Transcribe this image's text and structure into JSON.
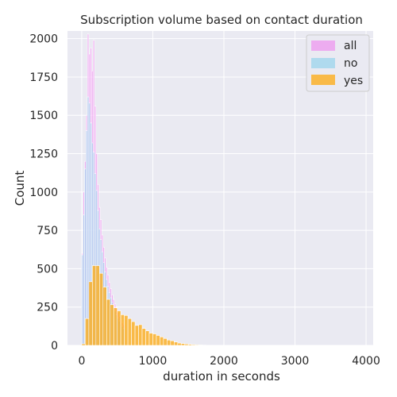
{
  "chart_data": {
    "type": "histogram",
    "title": "Subscription volume based on contact duration",
    "xlabel": "duration in seconds",
    "ylabel": "Count",
    "xlim": [
      -200,
      4100
    ],
    "ylim": [
      0,
      2050
    ],
    "xticks": [
      0,
      1000,
      2000,
      3000,
      4000
    ],
    "yticks": [
      0,
      250,
      500,
      750,
      1000,
      1250,
      1500,
      1750,
      2000
    ],
    "grid": true,
    "legend_position": "top-right",
    "background": "#EAEAF2",
    "series": [
      {
        "name": "all",
        "color": "#EE82EE",
        "bin_width": 20,
        "bins": [
          {
            "x": 0,
            "count": 600
          },
          {
            "x": 20,
            "count": 1000
          },
          {
            "x": 40,
            "count": 1200
          },
          {
            "x": 60,
            "count": 1500
          },
          {
            "x": 80,
            "count": 2030
          },
          {
            "x": 100,
            "count": 1900
          },
          {
            "x": 120,
            "count": 1940
          },
          {
            "x": 140,
            "count": 1790
          },
          {
            "x": 160,
            "count": 1990
          },
          {
            "x": 180,
            "count": 1560
          },
          {
            "x": 200,
            "count": 1250
          },
          {
            "x": 220,
            "count": 1050
          },
          {
            "x": 240,
            "count": 900
          },
          {
            "x": 260,
            "count": 820
          },
          {
            "x": 280,
            "count": 720
          },
          {
            "x": 300,
            "count": 640
          },
          {
            "x": 320,
            "count": 570
          },
          {
            "x": 340,
            "count": 510
          },
          {
            "x": 360,
            "count": 460
          },
          {
            "x": 380,
            "count": 410
          },
          {
            "x": 400,
            "count": 370
          },
          {
            "x": 420,
            "count": 330
          },
          {
            "x": 440,
            "count": 300
          },
          {
            "x": 460,
            "count": 270
          },
          {
            "x": 480,
            "count": 240
          },
          {
            "x": 500,
            "count": 215
          },
          {
            "x": 520,
            "count": 190
          },
          {
            "x": 540,
            "count": 170
          },
          {
            "x": 560,
            "count": 150
          },
          {
            "x": 580,
            "count": 135
          }
        ]
      },
      {
        "name": "no",
        "color": "#87CEEB",
        "bin_width": 20,
        "bins": [
          {
            "x": 0,
            "count": 590
          },
          {
            "x": 20,
            "count": 850
          },
          {
            "x": 40,
            "count": 1150
          },
          {
            "x": 60,
            "count": 1400
          },
          {
            "x": 80,
            "count": 1620
          },
          {
            "x": 100,
            "count": 1580
          },
          {
            "x": 120,
            "count": 1450
          },
          {
            "x": 140,
            "count": 1320
          },
          {
            "x": 160,
            "count": 1260
          },
          {
            "x": 180,
            "count": 1120
          },
          {
            "x": 200,
            "count": 1010
          },
          {
            "x": 220,
            "count": 880
          },
          {
            "x": 240,
            "count": 760
          },
          {
            "x": 260,
            "count": 690
          },
          {
            "x": 280,
            "count": 610
          },
          {
            "x": 300,
            "count": 540
          },
          {
            "x": 320,
            "count": 480
          },
          {
            "x": 340,
            "count": 430
          },
          {
            "x": 360,
            "count": 385
          },
          {
            "x": 380,
            "count": 345
          },
          {
            "x": 400,
            "count": 310
          },
          {
            "x": 420,
            "count": 280
          },
          {
            "x": 440,
            "count": 250
          },
          {
            "x": 460,
            "count": 225
          },
          {
            "x": 480,
            "count": 200
          },
          {
            "x": 500,
            "count": 180
          },
          {
            "x": 520,
            "count": 160
          },
          {
            "x": 540,
            "count": 140
          },
          {
            "x": 560,
            "count": 125
          },
          {
            "x": 580,
            "count": 110
          }
        ]
      },
      {
        "name": "yes",
        "color": "#FFA500",
        "bin_width": 50,
        "bins": [
          {
            "x": 0,
            "count": 10
          },
          {
            "x": 50,
            "count": 175
          },
          {
            "x": 100,
            "count": 415
          },
          {
            "x": 150,
            "count": 520
          },
          {
            "x": 200,
            "count": 520
          },
          {
            "x": 250,
            "count": 470
          },
          {
            "x": 300,
            "count": 380
          },
          {
            "x": 350,
            "count": 300
          },
          {
            "x": 400,
            "count": 265
          },
          {
            "x": 450,
            "count": 245
          },
          {
            "x": 500,
            "count": 225
          },
          {
            "x": 550,
            "count": 200
          },
          {
            "x": 600,
            "count": 195
          },
          {
            "x": 650,
            "count": 175
          },
          {
            "x": 700,
            "count": 155
          },
          {
            "x": 750,
            "count": 130
          },
          {
            "x": 800,
            "count": 135
          },
          {
            "x": 850,
            "count": 110
          },
          {
            "x": 900,
            "count": 95
          },
          {
            "x": 950,
            "count": 80
          },
          {
            "x": 1000,
            "count": 75
          },
          {
            "x": 1050,
            "count": 65
          },
          {
            "x": 1100,
            "count": 55
          },
          {
            "x": 1150,
            "count": 45
          },
          {
            "x": 1200,
            "count": 35
          },
          {
            "x": 1250,
            "count": 30
          },
          {
            "x": 1300,
            "count": 22
          },
          {
            "x": 1350,
            "count": 15
          },
          {
            "x": 1400,
            "count": 12
          },
          {
            "x": 1450,
            "count": 9
          },
          {
            "x": 1500,
            "count": 7
          },
          {
            "x": 1550,
            "count": 5
          },
          {
            "x": 1600,
            "count": 4
          },
          {
            "x": 1650,
            "count": 3
          },
          {
            "x": 1700,
            "count": 2
          },
          {
            "x": 1750,
            "count": 1
          }
        ]
      }
    ]
  }
}
